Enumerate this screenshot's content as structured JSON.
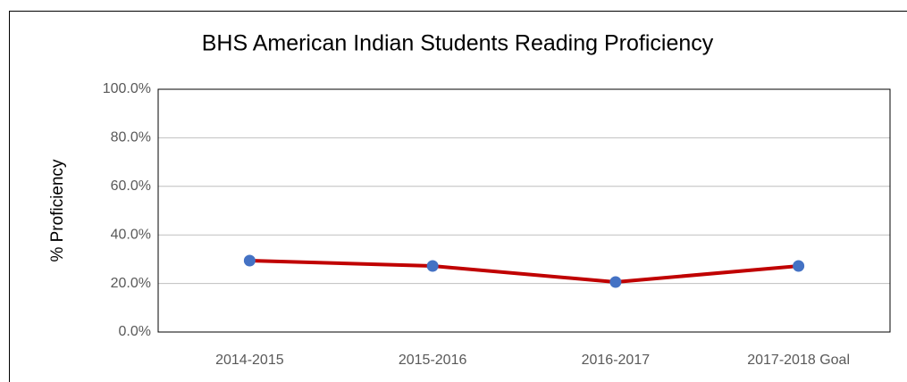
{
  "chart_data": {
    "type": "line",
    "title": "BHS American Indian Students Reading Proficiency",
    "y_label": "% Proficiency",
    "categories": [
      "2014-2015",
      "2015-2016",
      "2016-2017",
      "2017-2018 Goal"
    ],
    "series": [
      {
        "name": "Reading Proficiency",
        "color": "#c00000",
        "marker_color": "#4472c4",
        "values": [
          29.4,
          27.2,
          20.6,
          27.2
        ]
      }
    ],
    "ylim": [
      0,
      100
    ],
    "yticks": [
      {
        "value": 0,
        "label": "0.0%"
      },
      {
        "value": 20,
        "label": "20.0%"
      },
      {
        "value": 40,
        "label": "40.0%"
      },
      {
        "value": 60,
        "label": "60.0%"
      },
      {
        "value": 80,
        "label": "80.0%"
      },
      {
        "value": 100,
        "label": "100.0%"
      }
    ],
    "grid": true
  }
}
